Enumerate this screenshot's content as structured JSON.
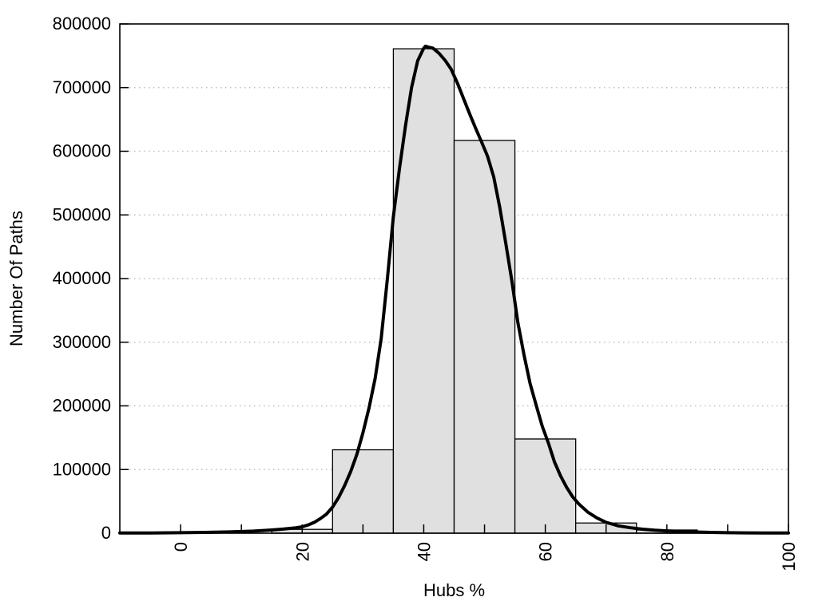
{
  "figure": {
    "background": "#ffffff"
  },
  "chart_data": {
    "type": "bar",
    "subtype": "histogram-with-fit-curve",
    "title": "",
    "xlabel": "Hubs %",
    "ylabel": "Number Of Paths",
    "xlim": [
      -10,
      100
    ],
    "ylim": [
      0,
      800000
    ],
    "xticks_major": [
      0,
      20,
      40,
      60,
      80,
      100
    ],
    "xtick_labels": [
      "0",
      "20",
      "40",
      "60",
      "80",
      "100"
    ],
    "xticks_minor": [
      10,
      30,
      50,
      70,
      90
    ],
    "yticks": [
      0,
      100000,
      200000,
      300000,
      400000,
      500000,
      600000,
      700000,
      800000
    ],
    "ytick_labels": [
      "0",
      "100000",
      "200000",
      "300000",
      "400000",
      "500000",
      "600000",
      "700000",
      "800000"
    ],
    "grid": {
      "horizontal": true,
      "vertical": false,
      "style": "dotted",
      "color": "#bfbfbf"
    },
    "legend": "none",
    "xtick_label_rotation_deg": -90,
    "bars": {
      "bin_edges": [
        15,
        25,
        35,
        45,
        55,
        65,
        75,
        85
      ],
      "counts": [
        6000,
        131000,
        761000,
        617000,
        148000,
        16000,
        5000
      ],
      "fill": "#e0e0e0",
      "stroke": "#000000"
    },
    "curve": {
      "name": "fit-curve",
      "color": "#000000",
      "width": 4,
      "points": [
        [
          -10,
          200
        ],
        [
          -5,
          400
        ],
        [
          0,
          700
        ],
        [
          4,
          1200
        ],
        [
          8,
          2000
        ],
        [
          12,
          3200
        ],
        [
          15,
          5000
        ],
        [
          17,
          6500
        ],
        [
          19,
          8500
        ],
        [
          20,
          10000
        ],
        [
          21,
          13000
        ],
        [
          22,
          17000
        ],
        [
          23,
          23000
        ],
        [
          24,
          30000
        ],
        [
          25,
          41000
        ],
        [
          26,
          56000
        ],
        [
          27,
          75000
        ],
        [
          28,
          97000
        ],
        [
          29,
          124000
        ],
        [
          30,
          158000
        ],
        [
          31,
          197000
        ],
        [
          32,
          243000
        ],
        [
          33,
          306000
        ],
        [
          34,
          398000
        ],
        [
          35,
          497000
        ],
        [
          36,
          572000
        ],
        [
          37,
          640000
        ],
        [
          38,
          700000
        ],
        [
          39,
          742000
        ],
        [
          40,
          762000
        ],
        [
          40.3,
          765000
        ],
        [
          41,
          763000
        ],
        [
          41.5,
          762000
        ],
        [
          42.5,
          754000
        ],
        [
          43.5,
          743000
        ],
        [
          44.5,
          729000
        ],
        [
          45.5,
          708000
        ],
        [
          46.5,
          684000
        ],
        [
          47.5,
          660000
        ],
        [
          48.5,
          637000
        ],
        [
          49.5,
          615000
        ],
        [
          50.5,
          592000
        ],
        [
          51.5,
          560000
        ],
        [
          52.5,
          512000
        ],
        [
          53.5,
          455000
        ],
        [
          54.5,
          396000
        ],
        [
          55.5,
          330000
        ],
        [
          56.5,
          280000
        ],
        [
          57.5,
          235000
        ],
        [
          58.5,
          201000
        ],
        [
          59.5,
          168000
        ],
        [
          60.5,
          142000
        ],
        [
          61.5,
          112000
        ],
        [
          62.5,
          90000
        ],
        [
          63.5,
          72000
        ],
        [
          64.5,
          57000
        ],
        [
          65.5,
          46000
        ],
        [
          67,
          33000
        ],
        [
          68.5,
          24000
        ],
        [
          70,
          17000
        ],
        [
          72,
          11500
        ],
        [
          74,
          8500
        ],
        [
          76,
          6300
        ],
        [
          78,
          4700
        ],
        [
          80,
          3600
        ],
        [
          82,
          2700
        ],
        [
          84,
          2000
        ],
        [
          86,
          1500
        ],
        [
          88,
          1100
        ],
        [
          90,
          800
        ],
        [
          93,
          550
        ],
        [
          96,
          380
        ],
        [
          100,
          250
        ]
      ]
    },
    "colors": {
      "axis": "#000000",
      "text": "#000000",
      "background": "#ffffff"
    }
  }
}
